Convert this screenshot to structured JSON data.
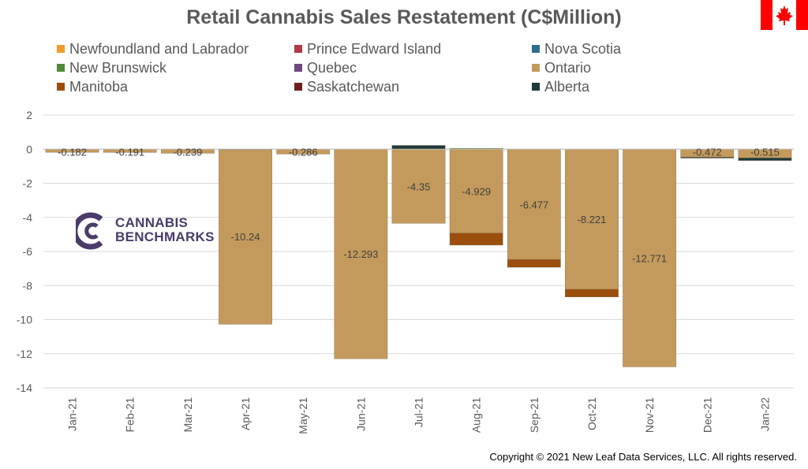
{
  "colors": {
    "title": "#595959",
    "axis_text": "#595959",
    "grid": "#d9d9d9",
    "flag_red": "#ff0000",
    "logo": "#4a3b6b"
  },
  "logo": {
    "line1": "CANNABIS",
    "line2": "BENCHMARKS"
  },
  "copyright": "Copyright © 2021 New Leaf Data Services, LLC. All rights reserved.",
  "chart_data": {
    "type": "bar",
    "stacked": true,
    "title": "Retail Cannabis Sales Restatement (C$Million)",
    "xlabel": "",
    "ylabel": "",
    "ylim": [
      -14,
      2
    ],
    "yticks": [
      2,
      0,
      -2,
      -4,
      -6,
      -8,
      -10,
      -12,
      -14
    ],
    "grid": true,
    "legend_position": "top",
    "categories": [
      "Jan-21",
      "Feb-21",
      "Mar-21",
      "Apr-21",
      "May-21",
      "Jun-21",
      "Jul-21",
      "Aug-21",
      "Sep-21",
      "Oct-21",
      "Nov-21",
      "Dec-21",
      "Jan-22"
    ],
    "data_labels": [
      "-0.182",
      "-0.191",
      "-0.239",
      "-10.24",
      "-0.286",
      "-12.293",
      "-4.35",
      "-4.929",
      "-6.477",
      "-8.221",
      "-12.771",
      "-0.472",
      "-0.515"
    ],
    "series": [
      {
        "name": "Newfoundland and Labrador",
        "color": "#f39a2e",
        "values": [
          0,
          0,
          0,
          0,
          0,
          0,
          0,
          0,
          0,
          0,
          0,
          0,
          0
        ]
      },
      {
        "name": "Prince Edward Island",
        "color": "#b03a48",
        "values": [
          0,
          0,
          0,
          0,
          0,
          0,
          0,
          0,
          0,
          0,
          0,
          0,
          0
        ]
      },
      {
        "name": "Nova Scotia",
        "color": "#2e6d8e",
        "values": [
          0,
          0,
          0,
          0,
          0,
          0,
          0,
          0,
          0,
          0,
          0,
          0,
          0
        ]
      },
      {
        "name": "New Brunswick",
        "color": "#4e8c3a",
        "values": [
          0,
          0,
          0,
          0,
          0,
          0,
          0,
          0.05,
          0,
          0,
          0,
          0,
          0
        ]
      },
      {
        "name": "Quebec",
        "color": "#6b4a7a",
        "values": [
          0,
          0,
          0,
          -0.03,
          0,
          0,
          0,
          0,
          0,
          0,
          0,
          0,
          0
        ]
      },
      {
        "name": "Ontario",
        "color": "#c49a5c",
        "values": [
          -0.182,
          -0.191,
          -0.239,
          -10.24,
          -0.286,
          -12.293,
          -4.35,
          -4.929,
          -6.477,
          -8.221,
          -12.771,
          -0.472,
          -0.515
        ]
      },
      {
        "name": "Manitoba",
        "color": "#9c4e0c",
        "values": [
          0,
          0,
          0,
          0,
          0,
          0,
          0,
          -0.7,
          -0.45,
          -0.45,
          0,
          0,
          0
        ]
      },
      {
        "name": "Saskatchewan",
        "color": "#6b1f1f",
        "values": [
          0,
          0,
          0,
          0,
          0,
          0,
          0,
          0,
          0,
          0,
          0,
          0,
          0
        ]
      },
      {
        "name": "Alberta",
        "color": "#1f3a3a",
        "values": [
          0,
          0,
          0,
          0,
          0,
          0,
          0.22,
          0,
          0,
          0,
          0,
          -0.05,
          -0.15
        ]
      }
    ]
  }
}
